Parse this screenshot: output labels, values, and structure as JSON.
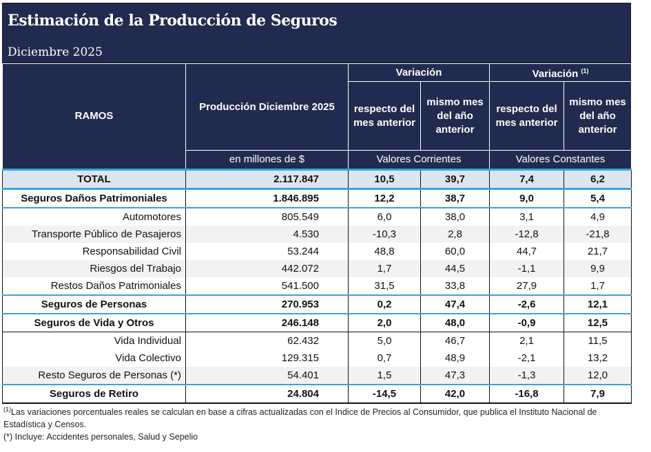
{
  "header": {
    "title": "Estimación de la Producción de Seguros",
    "subtitle": "Diciembre 2025"
  },
  "columns": {
    "ramos": "RAMOS",
    "produccion": "Producción Diciembre 2025",
    "unidad": "en millones de $",
    "variacion": "Variación",
    "variacion_real": "Variación",
    "variacion_real_sup": "(1)",
    "respecto_mes": "respecto del mes anterior",
    "mismo_mes": "mismo mes del año anterior",
    "valores_corrientes": "Valores Corrientes",
    "valores_constantes": "Valores Constantes"
  },
  "rows": [
    {
      "ramo": "TOTAL",
      "prod": "2.117.847",
      "vc1": "10,5",
      "vc2": "39,7",
      "vk1": "7,4",
      "vk2": "6,2"
    },
    {
      "ramo": "Seguros Daños Patrimoniales",
      "prod": "1.846.895",
      "vc1": "12,2",
      "vc2": "38,7",
      "vk1": "9,0",
      "vk2": "5,4"
    },
    {
      "ramo": "Automotores",
      "prod": "805.549",
      "vc1": "6,0",
      "vc2": "38,0",
      "vk1": "3,1",
      "vk2": "4,9"
    },
    {
      "ramo": "Transporte Público de Pasajeros",
      "prod": "4.530",
      "vc1": "-10,3",
      "vc2": "2,8",
      "vk1": "-12,8",
      "vk2": "-21,8"
    },
    {
      "ramo": "Responsabilidad Civil",
      "prod": "53.244",
      "vc1": "48,8",
      "vc2": "60,0",
      "vk1": "44,7",
      "vk2": "21,7"
    },
    {
      "ramo": "Riesgos del Trabajo",
      "prod": "442.072",
      "vc1": "1,7",
      "vc2": "44,5",
      "vk1": "-1,1",
      "vk2": "9,9"
    },
    {
      "ramo": "Restos Daños Patrimoniales",
      "prod": "541.500",
      "vc1": "31,5",
      "vc2": "33,8",
      "vk1": "27,9",
      "vk2": "1,7"
    },
    {
      "ramo": "Seguros de Personas",
      "prod": "270.953",
      "vc1": "0,2",
      "vc2": "47,4",
      "vk1": "-2,6",
      "vk2": "12,1"
    },
    {
      "ramo": "Seguros de Vida y Otros",
      "prod": "246.148",
      "vc1": "2,0",
      "vc2": "48,0",
      "vk1": "-0,9",
      "vk2": "12,5"
    },
    {
      "ramo": "Vida Individual",
      "prod": "62.432",
      "vc1": "5,0",
      "vc2": "46,7",
      "vk1": "2,1",
      "vk2": "11,5"
    },
    {
      "ramo": "Vida Colectivo",
      "prod": "129.315",
      "vc1": "0,7",
      "vc2": "48,9",
      "vk1": "-2,1",
      "vk2": "13,2"
    },
    {
      "ramo": "Resto Seguros de Personas (*)",
      "prod": "54.401",
      "vc1": "1,5",
      "vc2": "47,3",
      "vk1": "-1,3",
      "vk2": "12,0"
    },
    {
      "ramo": "Seguros de Retiro",
      "prod": "24.804",
      "vc1": "-14,5",
      "vc2": "42,0",
      "vk1": "-16,8",
      "vk2": "7,9"
    }
  ],
  "notes": {
    "note1_sup": "(1)",
    "note1": "Las variaciones porcentuales reales se calculan en base a cifras actualizadas con el Indice de Precios al Consumidor, que publica el Instituto Nacional de Estadística y Censos.",
    "note2": "(*) Incluye: Accidentes personales, Salud y Sepelio"
  }
}
